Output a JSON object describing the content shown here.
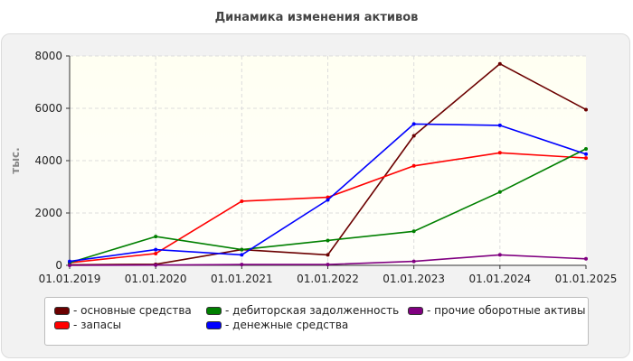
{
  "chart_data": {
    "type": "line",
    "title": "Динамика изменения активов",
    "ylabel": "тыс.",
    "xlabel": "",
    "x": [
      "01.01.2019",
      "01.01.2020",
      "01.01.2021",
      "01.01.2022",
      "01.01.2023",
      "01.01.2024",
      "01.01.2025"
    ],
    "yticks": [
      "0",
      "2000",
      "4000",
      "6000",
      "8000"
    ],
    "ylim": [
      0,
      8000
    ],
    "grid": true,
    "legend_position": "bottom",
    "series": [
      {
        "name": "- основные средства",
        "color": "#6b0000",
        "values": [
          20,
          40,
          600,
          400,
          4950,
          7700,
          5950
        ]
      },
      {
        "name": "- запасы",
        "color": "#ff0000",
        "values": [
          100,
          450,
          2450,
          2600,
          3800,
          4300,
          4100
        ]
      },
      {
        "name": "- дебиторская задолженность",
        "color": "#008000",
        "values": [
          100,
          1100,
          600,
          950,
          1300,
          2800,
          4450
        ]
      },
      {
        "name": "- денежные средства",
        "color": "#0000ff",
        "values": [
          150,
          600,
          400,
          2500,
          5400,
          5350,
          4250
        ]
      },
      {
        "name": "- прочие оборотные активы",
        "color": "#800080",
        "values": [
          0,
          10,
          30,
          30,
          150,
          400,
          250
        ]
      }
    ]
  }
}
